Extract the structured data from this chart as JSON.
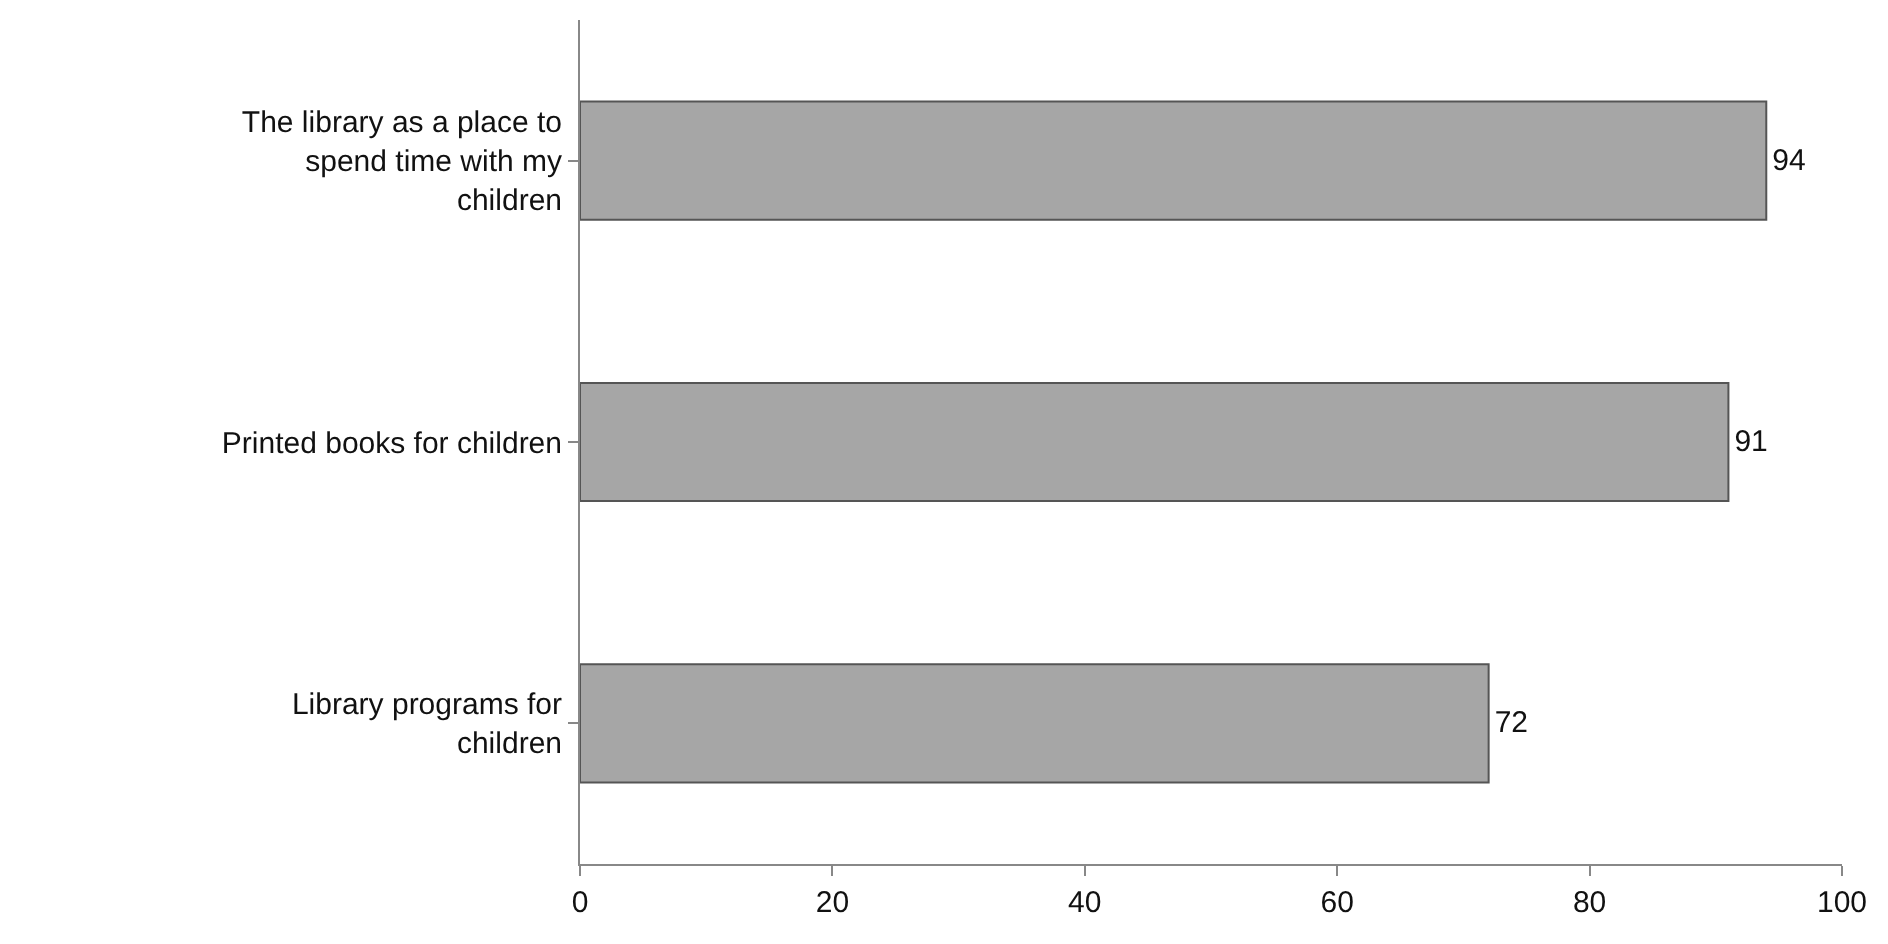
{
  "chart_data": {
    "type": "bar",
    "orientation": "horizontal",
    "categories": [
      "The library as a place to spend time with my children",
      "Printed books for children",
      "Library programs for children"
    ],
    "values": [
      94,
      91,
      72
    ],
    "color": "#a6a6a6",
    "xlim": [
      0,
      100
    ],
    "xticks": [
      0,
      20,
      40,
      60,
      80,
      100
    ],
    "data_labels": true
  }
}
